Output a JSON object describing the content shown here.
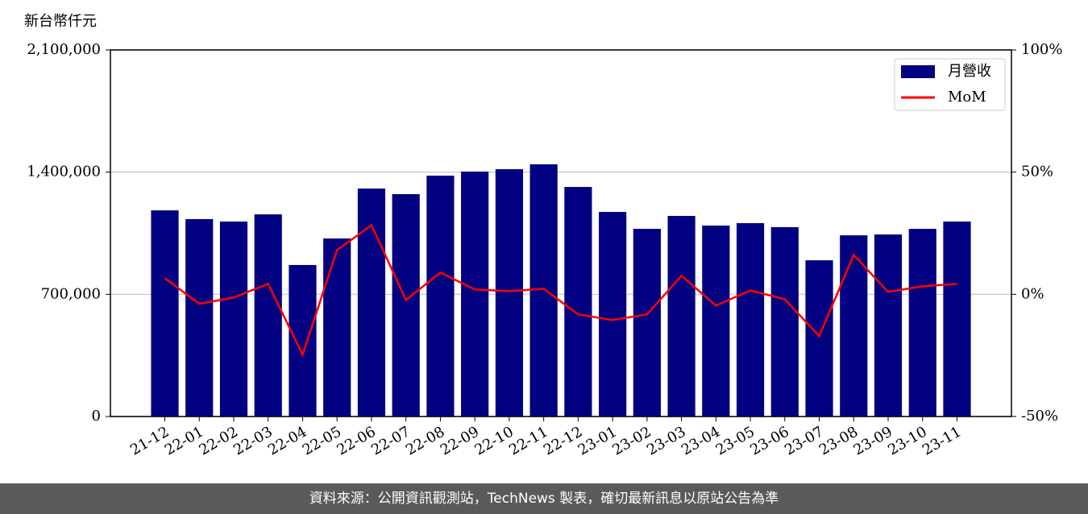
{
  "chart_data": {
    "type": "bar",
    "y_label": "新台幣仟元",
    "categories": [
      "21-12",
      "22-01",
      "22-02",
      "22-03",
      "22-04",
      "22-05",
      "22-06",
      "22-07",
      "22-08",
      "22-09",
      "22-10",
      "22-11",
      "22-12",
      "23-01",
      "23-02",
      "23-03",
      "23-04",
      "23-05",
      "23-06",
      "23-07",
      "23-08",
      "23-09",
      "23-10",
      "23-11"
    ],
    "series": [
      {
        "name": "月營收",
        "type": "bar",
        "color": "#000080",
        "values": [
          1181000,
          1131000,
          1117000,
          1158000,
          868000,
          1020000,
          1306000,
          1274000,
          1380000,
          1403000,
          1417000,
          1445000,
          1315000,
          1172000,
          1075000,
          1149000,
          1094000,
          1108000,
          1085000,
          895000,
          1038000,
          1043000,
          1075000,
          1117000
        ]
      },
      {
        "name": "MoM",
        "type": "line",
        "axis": "y2",
        "color": "#ff0000",
        "values": [
          6.6,
          -3.9,
          -1.3,
          4.3,
          -24.7,
          18.1,
          28.3,
          -2.3,
          8.9,
          2.0,
          1.3,
          2.3,
          -8.2,
          -10.5,
          -8.2,
          7.6,
          -4.6,
          1.6,
          -2.0,
          -17.1,
          16.1,
          1.0,
          3.3,
          4.3
        ]
      }
    ],
    "ylim": [
      0,
      2100000
    ],
    "yticks": [
      0,
      {
        "value": 700000,
        "label": "700,000"
      },
      {
        "value": 1400000,
        "label": "1,400,000"
      },
      {
        "value": 2100000,
        "label": "2,100,000"
      }
    ],
    "y2lim": [
      -50,
      100
    ],
    "y2ticks": [
      {
        "value": -50,
        "label": "-50%"
      },
      {
        "value": 0,
        "label": "0%"
      },
      {
        "value": 50,
        "label": "50%"
      },
      {
        "value": 100,
        "label": "100%"
      }
    ],
    "grid": true,
    "legend": "upper-right"
  },
  "footer": "資料來源：公開資訊觀測站，TechNews 製表，確切最新訊息以原站公告為準"
}
